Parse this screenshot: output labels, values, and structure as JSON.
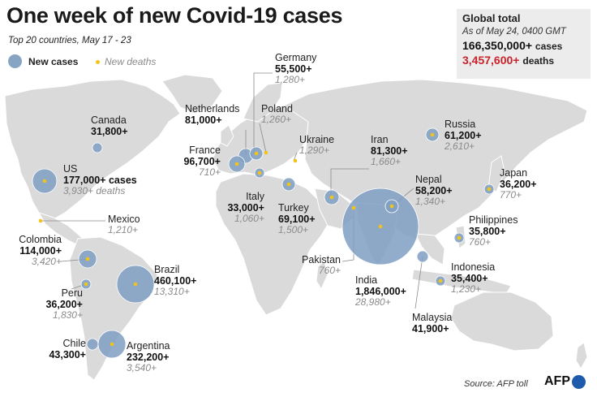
{
  "title": "One week of new Covid-19 cases",
  "subtitle": "Top 20 countries, May 17 - 23",
  "legend": {
    "cases_label": "New cases",
    "deaths_label": "New deaths"
  },
  "global": {
    "heading": "Global total",
    "as_of": "As of May 24, 0400 GMT",
    "cases_value": "166,350,000+",
    "cases_unit": "cases",
    "deaths_value": "3,457,600+",
    "deaths_unit": "deaths"
  },
  "countries": {
    "us": {
      "name": "US",
      "cases": "177,000+ cases",
      "deaths": "3,930+ deaths"
    },
    "canada": {
      "name": "Canada",
      "cases": "31,800+"
    },
    "mexico": {
      "name": "Mexico",
      "deaths": "1,210+"
    },
    "colombia": {
      "name": "Colombia",
      "cases": "114,000+",
      "deaths": "3,420+"
    },
    "peru": {
      "name": "Peru",
      "cases": "36,200+",
      "deaths": "1,830+"
    },
    "brazil": {
      "name": "Brazil",
      "cases": "460,100+",
      "deaths": "13,310+"
    },
    "chile": {
      "name": "Chile",
      "cases": "43,300+"
    },
    "argentina": {
      "name": "Argentina",
      "cases": "232,200+",
      "deaths": "3,540+"
    },
    "netherlands": {
      "name": "Netherlands",
      "cases": "81,000+"
    },
    "germany": {
      "name": "Germany",
      "cases": "55,500+",
      "deaths": "1,280+"
    },
    "poland": {
      "name": "Poland",
      "deaths": "1,260+"
    },
    "france": {
      "name": "France",
      "cases": "96,700+",
      "deaths": "710+"
    },
    "italy": {
      "name": "Italy",
      "cases": "33,000+",
      "deaths": "1,060+"
    },
    "ukraine": {
      "name": "Ukraine",
      "deaths": "1,290+"
    },
    "turkey": {
      "name": "Turkey",
      "cases": "69,100+",
      "deaths": "1,500+"
    },
    "iran": {
      "name": "Iran",
      "cases": "81,300+",
      "deaths": "1,660+"
    },
    "russia": {
      "name": "Russia",
      "cases": "61,200+",
      "deaths": "2,610+"
    },
    "nepal": {
      "name": "Nepal",
      "cases": "58,200+",
      "deaths": "1,340+"
    },
    "india": {
      "name": "India",
      "cases": "1,846,000+",
      "deaths": "28,980+"
    },
    "pakistan": {
      "name": "Pakistan",
      "deaths": "760+"
    },
    "japan": {
      "name": "Japan",
      "cases": "36,200+",
      "deaths": "770+"
    },
    "philippines": {
      "name": "Philippines",
      "cases": "35,800+",
      "deaths": "760+"
    },
    "indonesia": {
      "name": "Indonesia",
      "cases": "35,400+",
      "deaths": "1,230+"
    },
    "malaysia": {
      "name": "Malaysia",
      "cases": "41,900+"
    }
  },
  "source": "Source: AFP toll",
  "logo_text": "AFP",
  "colors": {
    "land": "#d9d9d9",
    "bubble": "#7f9fc2",
    "death_dot": "#f0c419",
    "deaths_total": "#c8222b"
  }
}
